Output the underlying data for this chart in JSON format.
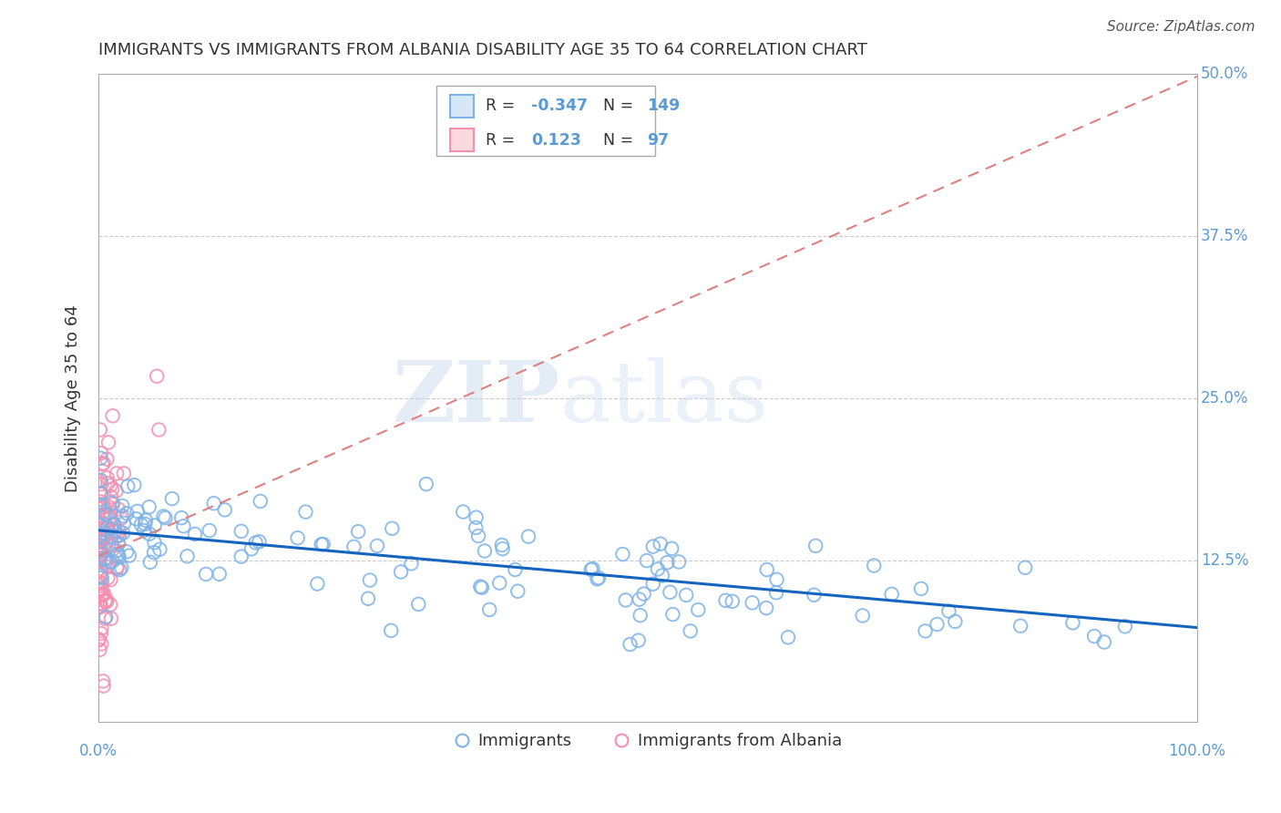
{
  "title": "IMMIGRANTS VS IMMIGRANTS FROM ALBANIA DISABILITY AGE 35 TO 64 CORRELATION CHART",
  "source": "Source: ZipAtlas.com",
  "xlabel": "",
  "ylabel": "Disability Age 35 to 64",
  "xlim": [
    0.0,
    1.0
  ],
  "ylim": [
    0.0,
    0.5
  ],
  "yticks": [
    0.0,
    0.125,
    0.25,
    0.375,
    0.5
  ],
  "ytick_labels": [
    "",
    "12.5%",
    "25.0%",
    "37.5%",
    "50.0%"
  ],
  "xticks": [
    0.0,
    0.25,
    0.5,
    0.75,
    1.0
  ],
  "xtick_labels": [
    "0.0%",
    "",
    "",
    "",
    "100.0%"
  ],
  "blue_R": -0.347,
  "blue_N": 149,
  "pink_R": 0.123,
  "pink_N": 97,
  "legend_label_blue": "Immigrants",
  "legend_label_pink": "Immigrants from Albania",
  "blue_color": "#7EB3E8",
  "pink_color": "#F48FB1",
  "blue_line_color": "#1565C0",
  "pink_line_color": "#E08080",
  "title_color": "#333333",
  "axis_color": "#5B9BD5",
  "grid_color": "#CCCCCC",
  "watermark_zip": "ZIP",
  "watermark_atlas": "atlas",
  "background_color": "#FFFFFF",
  "blue_intercept": 0.148,
  "blue_slope": -0.075,
  "pink_intercept": 0.128,
  "pink_slope": 0.37
}
